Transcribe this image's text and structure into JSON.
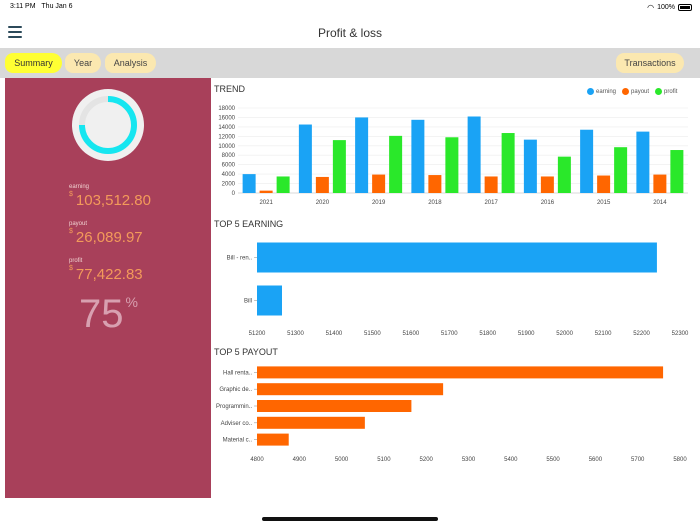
{
  "status": {
    "time": "3:11 PM",
    "date": "Thu Jan 6",
    "battery": "100%"
  },
  "header": {
    "title": "Profit & loss"
  },
  "tabs": [
    {
      "label": "Summary",
      "active": true
    },
    {
      "label": "Year",
      "active": false
    },
    {
      "label": "Analysis",
      "active": false
    }
  ],
  "transactions_label": "Transactions",
  "summary": {
    "earning_label": "earning",
    "earning_value": "103,512.80",
    "payout_label": "payout",
    "payout_value": "26,089.97",
    "profit_label": "profit",
    "profit_value": "77,422.83",
    "currency": "$",
    "percent_value": "75",
    "percent_sign": "%",
    "gauge_fraction": 0.75
  },
  "colors": {
    "earning": "#1aa3f5",
    "payout": "#ff6600",
    "profit": "#2ae82a",
    "panel": "#a8405a",
    "gauge": "#16e6f0"
  },
  "chart_data": [
    {
      "type": "bar",
      "title": "TREND",
      "categories": [
        "2021",
        "2020",
        "2019",
        "2018",
        "2017",
        "2016",
        "2015",
        "2014"
      ],
      "series": [
        {
          "name": "earning",
          "values": [
            4000,
            14500,
            16000,
            15500,
            16200,
            11300,
            13400,
            13000
          ]
        },
        {
          "name": "payout",
          "values": [
            500,
            3400,
            3900,
            3800,
            3500,
            3500,
            3700,
            3900
          ]
        },
        {
          "name": "profit",
          "values": [
            3500,
            11200,
            12100,
            11800,
            12700,
            7700,
            9700,
            9100
          ]
        }
      ],
      "yticks": [
        "0",
        "2000",
        "4000",
        "6000",
        "8000",
        "10000",
        "12000",
        "14000",
        "16000",
        "18000"
      ],
      "ylim": [
        0,
        18000
      ],
      "legend": [
        "earning",
        "payout",
        "profit"
      ]
    },
    {
      "type": "bar",
      "orientation": "horizontal",
      "title": "TOP 5 EARNING",
      "categories": [
        "Bill - ren..",
        "Bill"
      ],
      "values": [
        52240,
        51265
      ],
      "xticks": [
        "51200",
        "51300",
        "51400",
        "51500",
        "51600",
        "51700",
        "51800",
        "51900",
        "52000",
        "52100",
        "52200",
        "52300"
      ],
      "xlim": [
        51200,
        52300
      ]
    },
    {
      "type": "bar",
      "orientation": "horizontal",
      "title": "TOP 5 PAYOUT",
      "categories": [
        "Hall renta..",
        "Graphic de..",
        "Programmin..",
        "Adviser co..",
        "Material c.."
      ],
      "values": [
        5760,
        5240,
        5165,
        5055,
        4875
      ],
      "xticks": [
        "4800",
        "4900",
        "5000",
        "5100",
        "5200",
        "5300",
        "5400",
        "5500",
        "5600",
        "5700",
        "5800"
      ],
      "xlim": [
        4800,
        5800
      ]
    }
  ]
}
